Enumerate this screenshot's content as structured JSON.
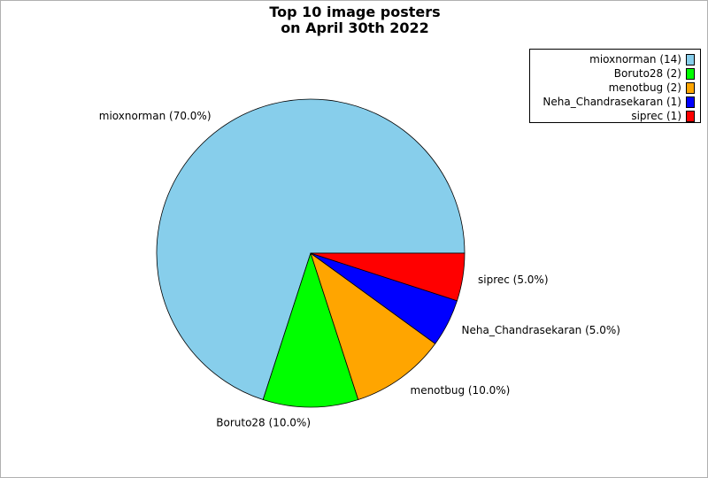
{
  "chart_data": {
    "type": "pie",
    "title_lines": [
      "Top 10 image posters",
      "on April 30th 2022"
    ],
    "slices": [
      {
        "name": "mioxnorman",
        "count": 14,
        "percent": 70.0,
        "label": "mioxnorman (70.0%)",
        "legend": "mioxnorman (14)",
        "color": "#87CEEB"
      },
      {
        "name": "Boruto28",
        "count": 2,
        "percent": 10.0,
        "label": "Boruto28 (10.0%)",
        "legend": "Boruto28 (2)",
        "color": "#00FF00"
      },
      {
        "name": "menotbug",
        "count": 2,
        "percent": 10.0,
        "label": "menotbug (10.0%)",
        "legend": "menotbug (2)",
        "color": "#FFA500"
      },
      {
        "name": "Neha_Chandrasekaran",
        "count": 1,
        "percent": 5.0,
        "label": "Neha_Chandrasekaran (5.0%)",
        "legend": "Neha_Chandrasekaran (1)",
        "color": "#0000FF"
      },
      {
        "name": "siprec",
        "count": 1,
        "percent": 5.0,
        "label": "siprec (5.0%)",
        "legend": "siprec (1)",
        "color": "#FF0000"
      }
    ],
    "legend_position": "top-right",
    "start_angle": "right",
    "direction": "counterclockwise"
  }
}
